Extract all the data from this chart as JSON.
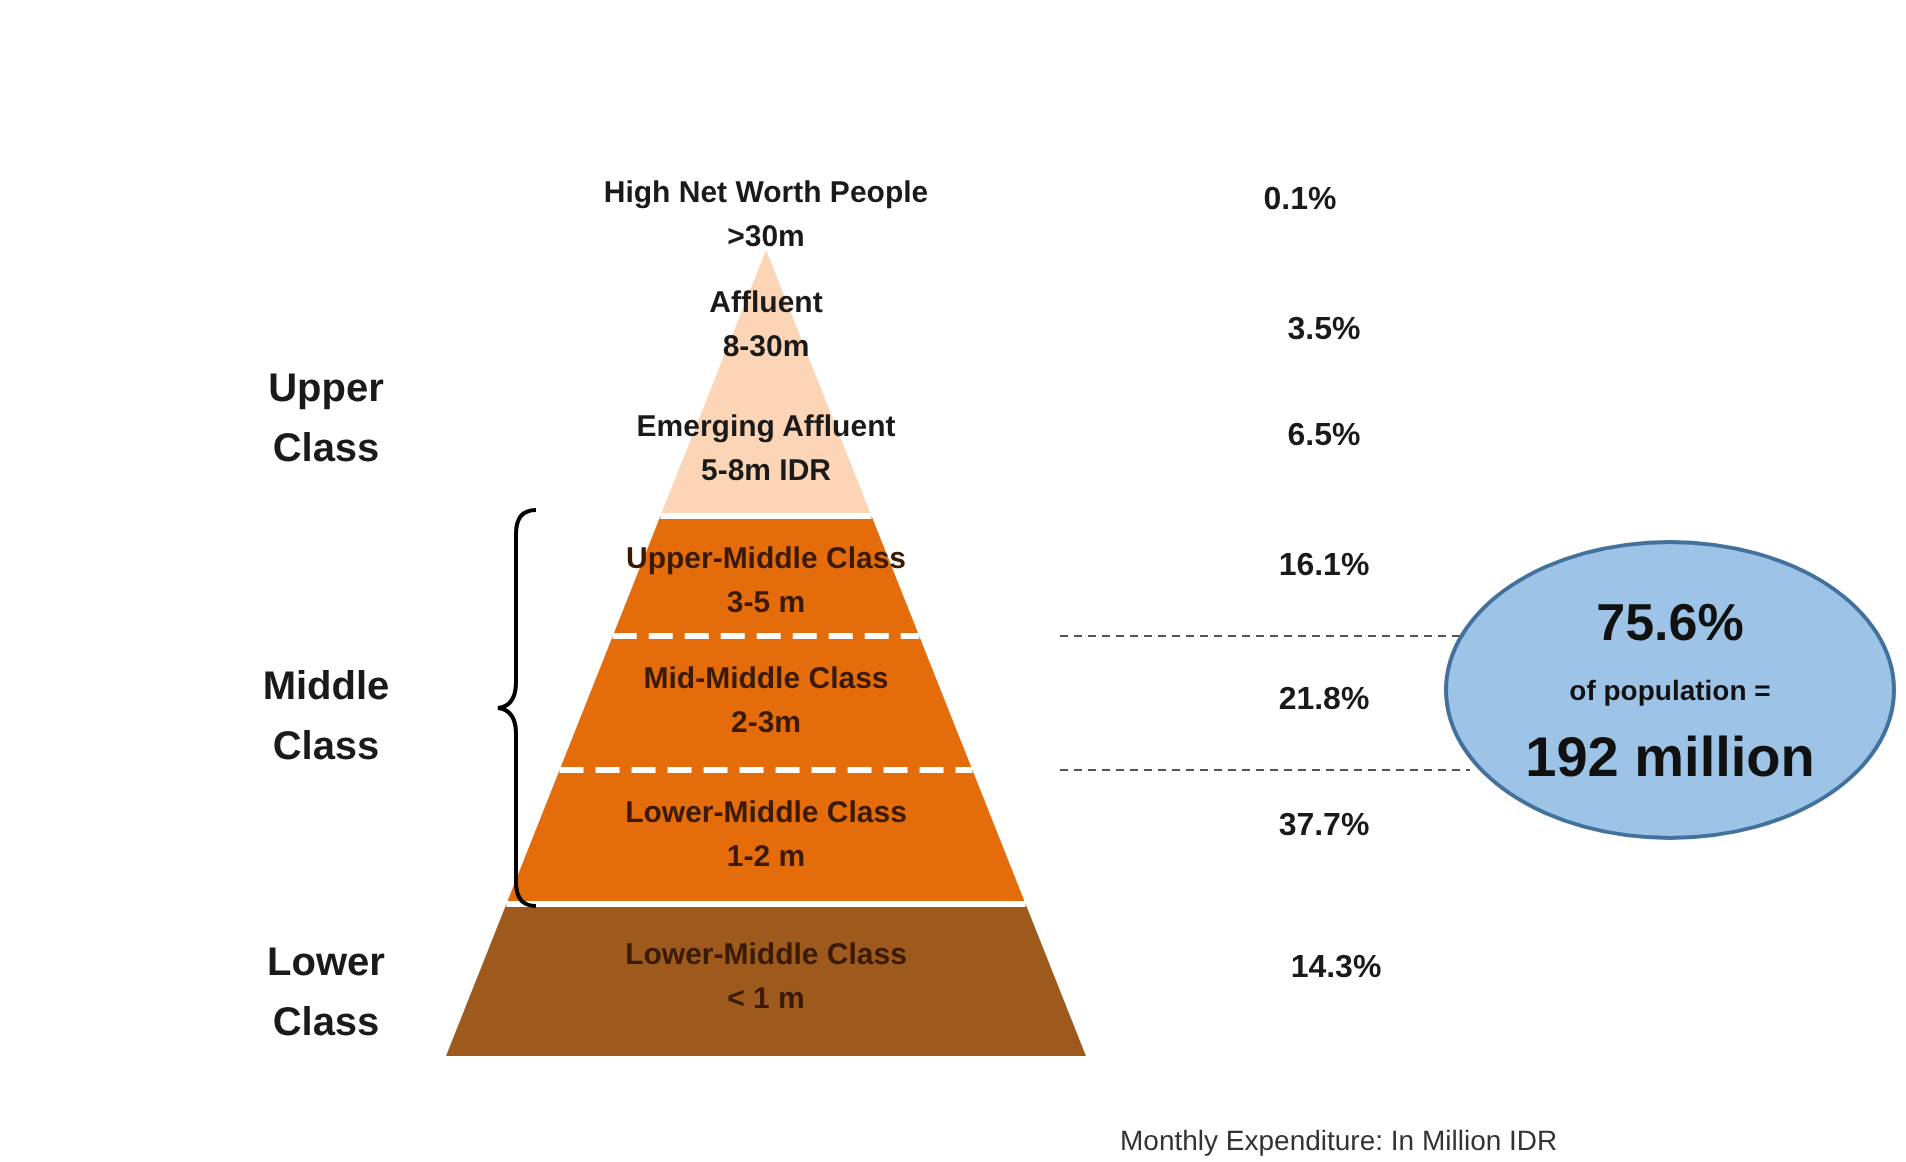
{
  "chart_data": {
    "type": "other",
    "categories": [
      "High Net Worth People\n>30m",
      "Affluent\n8-30m",
      "Emerging Affluent\n5-8m IDR",
      "Upper-Middle Class\n3-5 m",
      "Mid-Middle Class\n2-3m",
      "Lower-Middle Class\n1-2 m",
      "Lower-Middle Class\n< 1 m"
    ],
    "values": [
      0.1,
      3.5,
      6.5,
      16.1,
      21.8,
      37.7,
      14.3
    ],
    "value_labels": [
      "0.1%",
      "3.5%",
      "6.5%",
      "16.1%",
      "21.8%",
      "37.7%",
      "14.3%"
    ],
    "colors": [
      "#fbd5b5",
      "#fbd5b5",
      "#fbd5b5",
      "#e46c0a",
      "#e46c0a",
      "#e46c0a",
      "#9e5a1c"
    ],
    "annotations": [
      "Upper\nClass",
      "Middle\nClass",
      "Lower\nClass",
      "75.6%",
      "of population =",
      "192 million",
      "Monthly Expenditure: In Million IDR"
    ]
  }
}
